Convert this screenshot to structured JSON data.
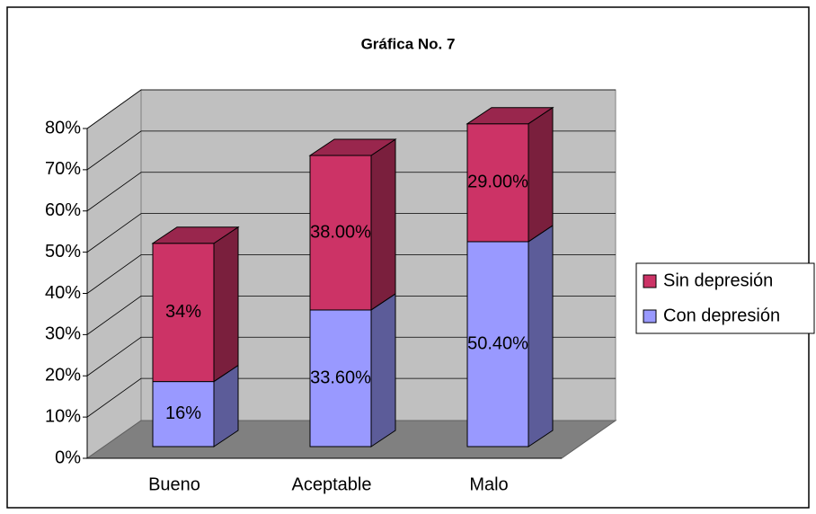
{
  "chart_data": {
    "type": "bar3d_stacked",
    "title": "Gráfica No. 7",
    "categories": [
      "Bueno",
      "Aceptable",
      "Malo"
    ],
    "series": [
      {
        "name": "Con depresión",
        "color": "#9999ff",
        "values": [
          16,
          33.6,
          50.4
        ],
        "value_labels": [
          "16%",
          "33.60%",
          "50.40%"
        ]
      },
      {
        "name": "Sin depresión",
        "color": "#cc3366",
        "values": [
          34,
          38,
          29
        ],
        "value_labels": [
          "34%",
          "38.00%",
          "29.00%"
        ]
      }
    ],
    "ylim": [
      0,
      80
    ],
    "yticks": [
      {
        "value": 0,
        "label": "0%"
      },
      {
        "value": 10,
        "label": "10%"
      },
      {
        "value": 20,
        "label": "20%"
      },
      {
        "value": 30,
        "label": "30%"
      },
      {
        "value": 40,
        "label": "40%"
      },
      {
        "value": 50,
        "label": "50%"
      },
      {
        "value": 60,
        "label": "60%"
      },
      {
        "value": 70,
        "label": "70%"
      },
      {
        "value": 80,
        "label": "80%"
      }
    ],
    "grid": true,
    "legend": "right"
  }
}
